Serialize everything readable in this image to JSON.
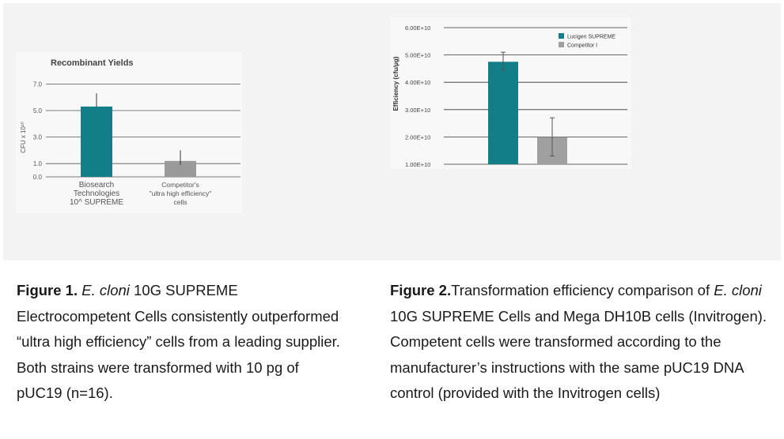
{
  "chart_data": [
    {
      "type": "bar",
      "title": "Recombinant Yields",
      "ylabel": "CFU x 10¹⁰",
      "yticks": [
        "0.0",
        "1.0",
        "3.0",
        "5.0",
        "7.0"
      ],
      "ylim": [
        0,
        7.5
      ],
      "categories": [
        [
          "Biosearch",
          "Technologies",
          "10^ SUPREME"
        ],
        [
          "Competitor's",
          "\"ultra high efficiency\"",
          "cells"
        ]
      ],
      "values": [
        5.3,
        1.2
      ],
      "error_upper": [
        6.3,
        2.0
      ],
      "error_lower": [
        5.3,
        0.9
      ],
      "colors": [
        "#117e88",
        "#9a9a9a"
      ],
      "grid": true
    },
    {
      "type": "bar",
      "xlabel": "",
      "ylabel": "Efficiency (cfu/µg)",
      "yticks": [
        "1.00E+10",
        "2.00E+10",
        "3.00E+10",
        "4.00E+10",
        "5.00E+10",
        "6.00E+10"
      ],
      "ylim": [
        10000000000.0,
        60000000000.0
      ],
      "series": [
        {
          "name": "Lucigen SUPREME",
          "value": 47500000000.0,
          "error_upper": 51000000000.0,
          "error_lower": 44500000000.0,
          "color": "#117e88"
        },
        {
          "name": "Competitor I",
          "value": 20000000000.0,
          "error_upper": 27000000000.0,
          "error_lower": 13000000000.0,
          "color": "#a0a0a0"
        }
      ],
      "legend": "top-right",
      "grid": true
    }
  ],
  "captions": {
    "fig1": {
      "label": "Figure 1.",
      "italic": "E. cloni",
      "text": " 10G SUPREME Electrocompetent Cells consistently outperformed “ultra high efficiency” cells from a leading supplier. Both strains were transformed with 10 pg of pUC19 (n=16)."
    },
    "fig2": {
      "label": "Figure 2.",
      "text_before": "Transformation efficiency comparison of ",
      "italic": "E. cloni",
      "text_after": " 10G SUPREME Cells and Mega DH10B cells (Invitrogen). Competent cells were transformed according to the manufacturer’s instructions with the same pUC19 DNA control (provided with the Invitrogen cells)"
    }
  }
}
